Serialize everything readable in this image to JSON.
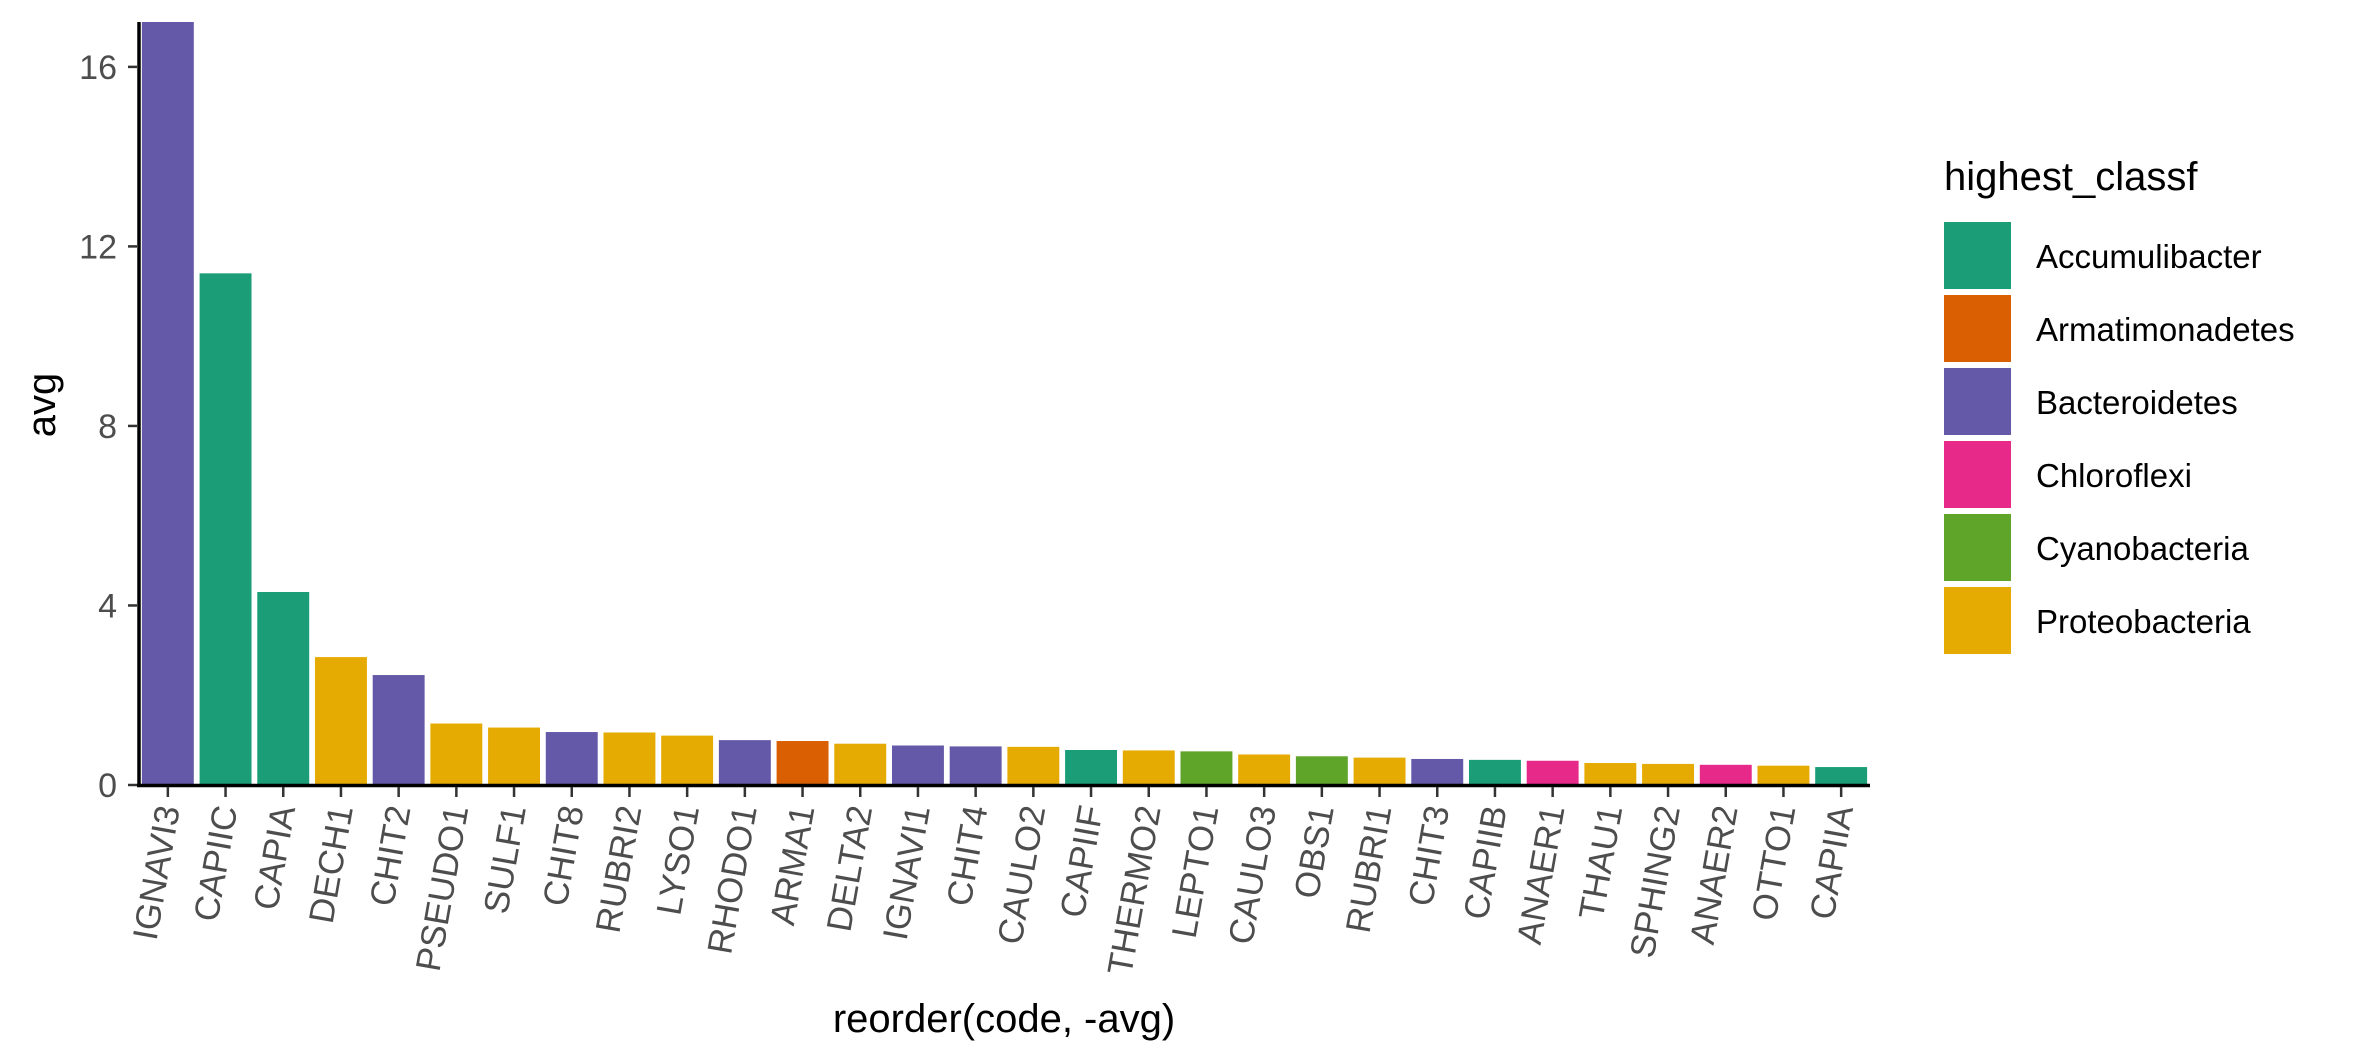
{
  "chart_data": {
    "type": "bar",
    "xlabel": "reorder(code, -avg)",
    "ylabel": "avg",
    "ylim": [
      0,
      17
    ],
    "yticks": [
      0,
      4,
      8,
      12,
      16
    ],
    "grid": false,
    "legend": {
      "title": "highest_classf",
      "position": "right",
      "entries": [
        {
          "name": "Accumulibacter",
          "color": "#1B9E77"
        },
        {
          "name": "Armatimonadetes",
          "color": "#D95F02"
        },
        {
          "name": "Bacteroidetes",
          "color": "#6459A8"
        },
        {
          "name": "Chloroflexi",
          "color": "#E7298A"
        },
        {
          "name": "Cyanobacteria",
          "color": "#5FA52A"
        },
        {
          "name": "Proteobacteria",
          "color": "#E6AB02"
        }
      ]
    },
    "bars": [
      {
        "code": "IGNAVI3",
        "value": 17.0,
        "group": "Bacteroidetes"
      },
      {
        "code": "CAPIIC",
        "value": 11.4,
        "group": "Accumulibacter"
      },
      {
        "code": "CAPIA",
        "value": 4.3,
        "group": "Accumulibacter"
      },
      {
        "code": "DECH1",
        "value": 2.85,
        "group": "Proteobacteria"
      },
      {
        "code": "CHIT2",
        "value": 2.45,
        "group": "Bacteroidetes"
      },
      {
        "code": "PSEUDO1",
        "value": 1.37,
        "group": "Proteobacteria"
      },
      {
        "code": "SULF1",
        "value": 1.28,
        "group": "Proteobacteria"
      },
      {
        "code": "CHIT8",
        "value": 1.18,
        "group": "Bacteroidetes"
      },
      {
        "code": "RUBRI2",
        "value": 1.17,
        "group": "Proteobacteria"
      },
      {
        "code": "LYSO1",
        "value": 1.1,
        "group": "Proteobacteria"
      },
      {
        "code": "RHODO1",
        "value": 1.0,
        "group": "Bacteroidetes"
      },
      {
        "code": "ARMA1",
        "value": 0.98,
        "group": "Armatimonadetes"
      },
      {
        "code": "DELTA2",
        "value": 0.92,
        "group": "Proteobacteria"
      },
      {
        "code": "IGNAVI1",
        "value": 0.88,
        "group": "Bacteroidetes"
      },
      {
        "code": "CHIT4",
        "value": 0.86,
        "group": "Bacteroidetes"
      },
      {
        "code": "CAULO2",
        "value": 0.85,
        "group": "Proteobacteria"
      },
      {
        "code": "CAPIIF",
        "value": 0.78,
        "group": "Accumulibacter"
      },
      {
        "code": "THERMO2",
        "value": 0.77,
        "group": "Proteobacteria"
      },
      {
        "code": "LEPTO1",
        "value": 0.75,
        "group": "Cyanobacteria"
      },
      {
        "code": "CAULO3",
        "value": 0.68,
        "group": "Proteobacteria"
      },
      {
        "code": "OBS1",
        "value": 0.64,
        "group": "Cyanobacteria"
      },
      {
        "code": "RUBRI1",
        "value": 0.61,
        "group": "Proteobacteria"
      },
      {
        "code": "CHIT3",
        "value": 0.58,
        "group": "Bacteroidetes"
      },
      {
        "code": "CAPIIB",
        "value": 0.56,
        "group": "Accumulibacter"
      },
      {
        "code": "ANAER1",
        "value": 0.54,
        "group": "Chloroflexi"
      },
      {
        "code": "THAU1",
        "value": 0.49,
        "group": "Proteobacteria"
      },
      {
        "code": "SPHING2",
        "value": 0.47,
        "group": "Proteobacteria"
      },
      {
        "code": "ANAER2",
        "value": 0.45,
        "group": "Chloroflexi"
      },
      {
        "code": "OTTO1",
        "value": 0.43,
        "group": "Proteobacteria"
      },
      {
        "code": "CAPIIA",
        "value": 0.4,
        "group": "Accumulibacter"
      }
    ]
  }
}
